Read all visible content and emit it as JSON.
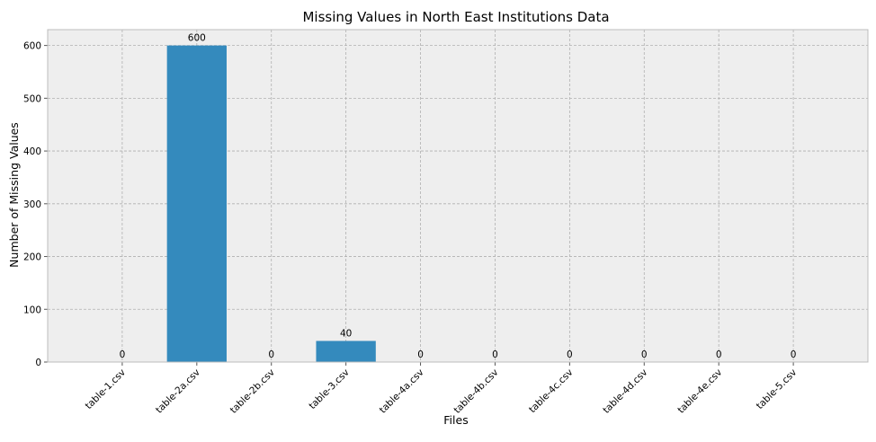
{
  "chart_data": {
    "type": "bar",
    "title": "Missing Values in North East Institutions Data",
    "xlabel": "Files",
    "ylabel": "Number of Missing Values",
    "categories": [
      "table-1.csv",
      "table-2a.csv",
      "table-2b.csv",
      "table-3.csv",
      "table-4a.csv",
      "table-4b.csv",
      "table-4c.csv",
      "table-4d.csv",
      "table-4e.csv",
      "table-5.csv"
    ],
    "values": [
      0,
      600,
      0,
      40,
      0,
      0,
      0,
      0,
      0,
      0
    ],
    "data_labels": [
      "0",
      "600",
      "0",
      "40",
      "0",
      "0",
      "0",
      "0",
      "0",
      "0"
    ],
    "ylim": [
      0,
      630
    ],
    "yticks": [
      0,
      100,
      200,
      300,
      400,
      500,
      600
    ],
    "grid": true,
    "bar_color": "#348abd",
    "plot_background": "#eeeeee"
  }
}
